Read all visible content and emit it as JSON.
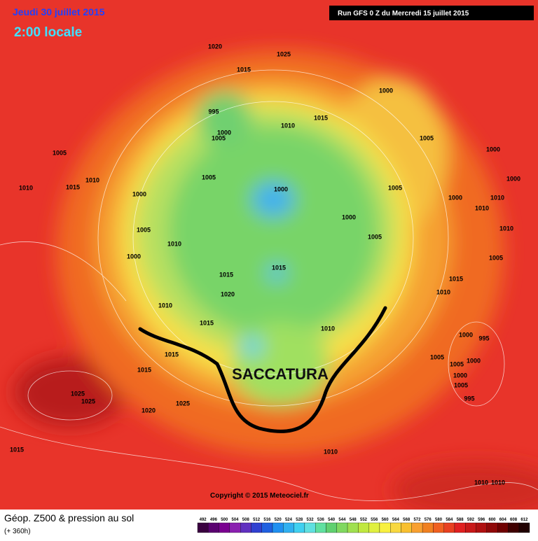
{
  "header": {
    "date": "Jeudi 30 juillet 2015",
    "time": "2:00 locale",
    "run": "Run GFS 0 Z du Mercredi 15 juillet 2015"
  },
  "annotation": "SACCATURA",
  "copyright": "Copyright © 2015 Meteociel.fr",
  "legend": {
    "title": "Géop. Z500 & pression au sol",
    "subtitle": "(+ 360h)",
    "ticks": [
      492,
      496,
      500,
      504,
      508,
      512,
      516,
      520,
      524,
      528,
      532,
      536,
      540,
      544,
      548,
      552,
      556,
      560,
      564,
      568,
      572,
      576,
      580,
      584,
      588,
      592,
      596,
      600,
      604,
      608,
      612
    ],
    "colors": [
      "#3a0040",
      "#5a0070",
      "#7a0090",
      "#8a20b0",
      "#6030c0",
      "#3040d0",
      "#2060e0",
      "#2090f0",
      "#30b0f0",
      "#40d0f0",
      "#60e0e0",
      "#60e0a0",
      "#60d070",
      "#80d860",
      "#a0e050",
      "#c0e840",
      "#e0f040",
      "#f8f040",
      "#f8d840",
      "#f8c030",
      "#f8a030",
      "#f08020",
      "#f06020",
      "#e84020",
      "#e02020",
      "#c81818",
      "#b01010",
      "#900808",
      "#700000",
      "#400000",
      "#200000"
    ]
  },
  "isobars": [
    "1020",
    "1025",
    "1015",
    "1000",
    "995",
    "1000",
    "1005",
    "1010",
    "1015",
    "1005",
    "1000",
    "1005",
    "1005",
    "1000",
    "1005",
    "1000",
    "1010",
    "1015",
    "1010",
    "1000",
    "1000",
    "1010",
    "1010",
    "1010",
    "1000",
    "1005",
    "1005",
    "1010",
    "1000",
    "1005",
    "1015",
    "1015",
    "1015",
    "1020",
    "1010",
    "1010",
    "1015",
    "1010",
    "1000",
    "995",
    "1015",
    "1015",
    "1005",
    "1005",
    "1000",
    "1000",
    "1005",
    "995",
    "1025",
    "1025",
    "1025",
    "1020",
    "1015",
    "1010",
    "1010",
    "1010"
  ]
}
